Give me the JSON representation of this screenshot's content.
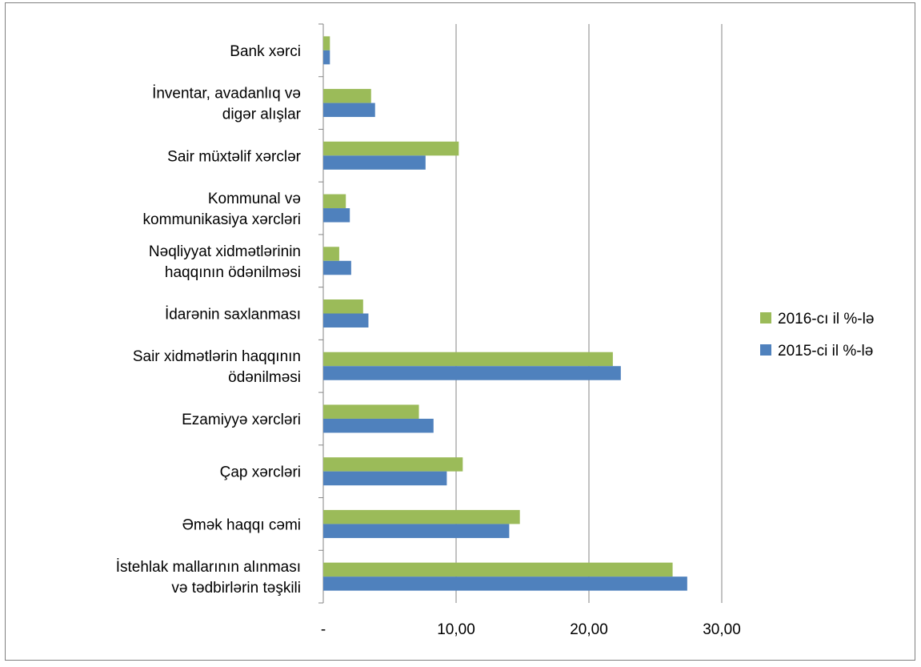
{
  "chart_data": {
    "type": "bar",
    "orientation": "horizontal",
    "categories": [
      [
        "İstehlak mallarının alınması",
        "və tədbirlərin  təşkili"
      ],
      [
        "Əmək haqqı cəmi"
      ],
      [
        "Çap xərcləri"
      ],
      [
        "Ezamiyyə xərcləri"
      ],
      [
        "Sair xidmətlərin haqqının",
        "ödənilməsi"
      ],
      [
        "İdarənin saxlanması"
      ],
      [
        "Nəqliyyat xidmətlərinin",
        "haqqının ödənilməsi"
      ],
      [
        "Kommunal və",
        "kommunikasiya xərcləri"
      ],
      [
        "Sair müxtəlif xərclər"
      ],
      [
        "İnventar, avadanlıq və",
        "digər alışlar"
      ],
      [
        "Bank xərci"
      ]
    ],
    "series": [
      {
        "name": "2016-cı il %-lə",
        "color": "#9bbb59",
        "values": [
          26.3,
          14.8,
          10.5,
          7.2,
          21.8,
          3.0,
          1.2,
          1.7,
          10.2,
          3.6,
          0.5
        ]
      },
      {
        "name": "2015-ci il  %-lə",
        "color": "#4f81bd",
        "values": [
          27.4,
          14.0,
          9.3,
          8.3,
          22.4,
          3.4,
          2.1,
          2.0,
          7.7,
          3.9,
          0.5
        ]
      }
    ],
    "xlim": [
      0,
      30
    ],
    "x_ticks": [
      {
        "value": 0,
        "label": "-"
      },
      {
        "value": 10,
        "label": "10,00"
      },
      {
        "value": 20,
        "label": "20,00"
      },
      {
        "value": 30,
        "label": "30,00"
      }
    ],
    "grid": true,
    "legend": "right"
  }
}
